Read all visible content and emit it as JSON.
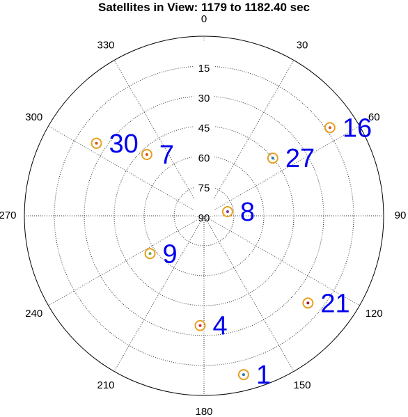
{
  "chart_data": {
    "type": "polar-scatter",
    "title": "Satellites in View: 1179 to 1182.40 sec",
    "azimuth_ticks": [
      0,
      30,
      60,
      90,
      120,
      150,
      180,
      210,
      240,
      270,
      300,
      330
    ],
    "azimuth_tick_labels": [
      "0",
      "30",
      "60",
      "90",
      "120",
      "150",
      "180",
      "210",
      "240",
      "270",
      "300",
      "330"
    ],
    "elevation_ticks": [
      15,
      30,
      45,
      60,
      75,
      90
    ],
    "elevation_tick_labels": [
      "15",
      "30",
      "45",
      "60",
      "75",
      "90"
    ],
    "elevation_range": [
      0,
      90
    ],
    "grid": true,
    "marker_ring_color": "#e6a020",
    "satellites": [
      {
        "prn": "1",
        "azimuth": 166,
        "elevation": 8,
        "dot_color": "#1f77b4"
      },
      {
        "prn": "4",
        "azimuth": 182,
        "elevation": 35,
        "dot_color": "#d62728"
      },
      {
        "prn": "7",
        "azimuth": 317,
        "elevation": 48,
        "dot_color": "#d95319"
      },
      {
        "prn": "8",
        "azimuth": 80,
        "elevation": 78,
        "dot_color": "#7e2f8e"
      },
      {
        "prn": "9",
        "azimuth": 235,
        "elevation": 57,
        "dot_color": "#77ac30"
      },
      {
        "prn": "16",
        "azimuth": 55,
        "elevation": 13,
        "dot_color": "#d95319"
      },
      {
        "prn": "21",
        "azimuth": 130,
        "elevation": 22,
        "dot_color": "#a2142f"
      },
      {
        "prn": "27",
        "azimuth": 50,
        "elevation": 45,
        "dot_color": "#1f77b4"
      },
      {
        "prn": "30",
        "azimuth": 304,
        "elevation": 25,
        "dot_color": "#d95319"
      }
    ]
  }
}
